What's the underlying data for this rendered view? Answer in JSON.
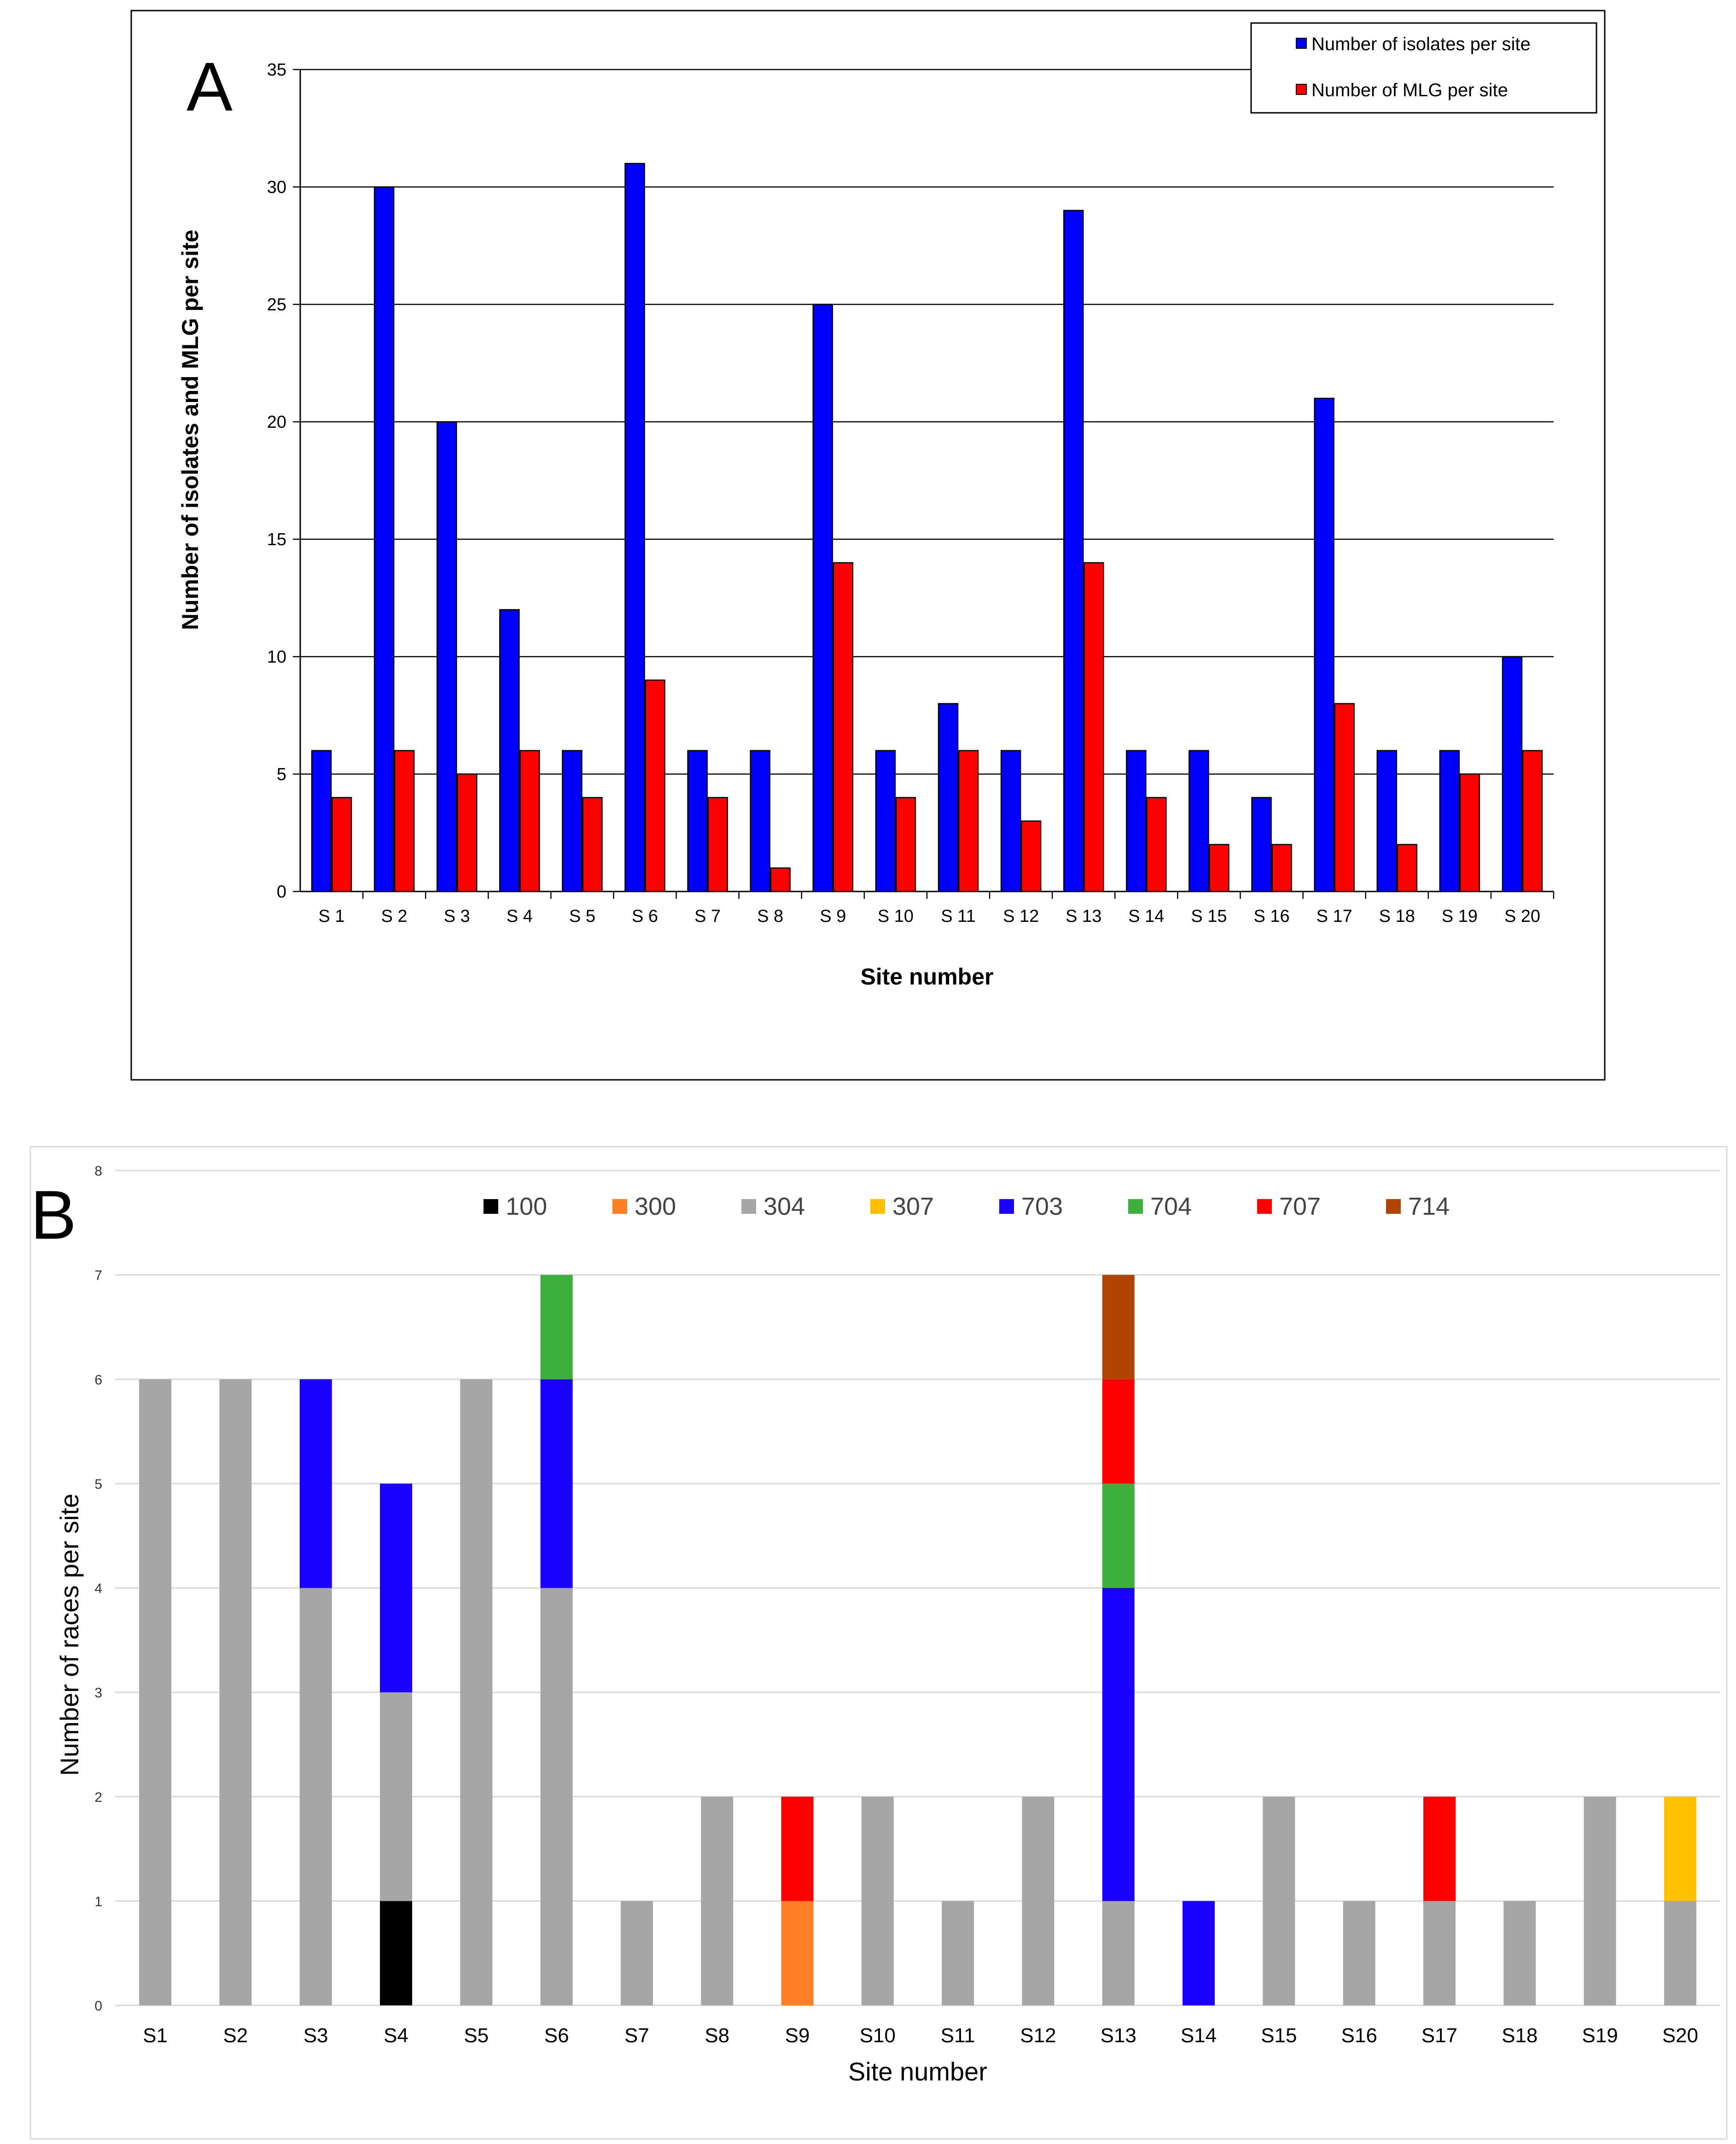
{
  "chart_data": [
    {
      "panel": "A",
      "type": "bar",
      "categories": [
        "S 1",
        "S 2",
        "S 3",
        "S 4",
        "S 5",
        "S 6",
        "S 7",
        "S 8",
        "S 9",
        "S 10",
        "S 11",
        "S 12",
        "S 13",
        "S 14",
        "S 15",
        "S 16",
        "S 17",
        "S 18",
        "S 19",
        "S 20"
      ],
      "series": [
        {
          "name": "Number of isolates per site",
          "color": "#0000ff",
          "values": [
            6,
            30,
            20,
            12,
            6,
            31,
            6,
            6,
            25,
            6,
            8,
            6,
            29,
            6,
            6,
            4,
            21,
            6,
            6,
            10
          ]
        },
        {
          "name": "Number of MLG per site",
          "color": "#ff0000",
          "values": [
            4,
            6,
            5,
            6,
            4,
            9,
            4,
            1,
            14,
            4,
            6,
            3,
            14,
            4,
            2,
            2,
            8,
            2,
            5,
            6
          ]
        }
      ],
      "xlabel": "Site number",
      "ylabel": "Number of isolates and MLG per site",
      "ylim": [
        0,
        35
      ],
      "yticks": [
        0,
        5,
        10,
        15,
        20,
        25,
        30,
        35
      ],
      "legend_position": "top-right",
      "grid": true
    },
    {
      "panel": "B",
      "type": "bar",
      "stacked": true,
      "categories": [
        "S1",
        "S2",
        "S3",
        "S4",
        "S5",
        "S6",
        "S7",
        "S8",
        "S9",
        "S10",
        "S11",
        "S12",
        "S13",
        "S14",
        "S15",
        "S16",
        "S17",
        "S18",
        "S19",
        "S20"
      ],
      "series": [
        {
          "name": "100",
          "color": "#000000",
          "values": [
            0,
            0,
            0,
            1,
            0,
            0,
            0,
            0,
            0,
            0,
            0,
            0,
            0,
            0,
            0,
            0,
            0,
            0,
            0,
            0
          ]
        },
        {
          "name": "300",
          "color": "#ff7f27",
          "values": [
            0,
            0,
            0,
            0,
            0,
            0,
            0,
            0,
            1,
            0,
            0,
            0,
            0,
            0,
            0,
            0,
            0,
            0,
            0,
            0
          ]
        },
        {
          "name": "304",
          "color": "#a6a6a6",
          "values": [
            6,
            6,
            4,
            2,
            6,
            4,
            1,
            2,
            0,
            2,
            1,
            2,
            1,
            0,
            2,
            1,
            1,
            1,
            2,
            1
          ]
        },
        {
          "name": "307",
          "color": "#ffc000",
          "values": [
            0,
            0,
            0,
            0,
            0,
            0,
            0,
            0,
            0,
            0,
            0,
            0,
            0,
            0,
            0,
            0,
            0,
            0,
            0,
            1
          ]
        },
        {
          "name": "703",
          "color": "#1a00ff",
          "values": [
            0,
            0,
            2,
            2,
            0,
            2,
            0,
            0,
            0,
            0,
            0,
            0,
            3,
            1,
            0,
            0,
            0,
            0,
            0,
            0
          ]
        },
        {
          "name": "704",
          "color": "#3caf3c",
          "values": [
            0,
            0,
            0,
            0,
            0,
            1,
            0,
            0,
            0,
            0,
            0,
            0,
            1,
            0,
            0,
            0,
            0,
            0,
            0,
            0
          ]
        },
        {
          "name": "707",
          "color": "#ff0000",
          "values": [
            0,
            0,
            0,
            0,
            0,
            0,
            0,
            0,
            1,
            0,
            0,
            0,
            1,
            0,
            0,
            0,
            1,
            0,
            0,
            0
          ]
        },
        {
          "name": "714",
          "color": "#b04400",
          "values": [
            0,
            0,
            0,
            0,
            0,
            0,
            0,
            0,
            0,
            0,
            0,
            0,
            1,
            0,
            0,
            0,
            0,
            0,
            0,
            0
          ]
        }
      ],
      "xlabel": "Site number",
      "ylabel": "Number of races per site",
      "ylim": [
        0,
        8
      ],
      "yticks": [
        0,
        1,
        2,
        3,
        4,
        5,
        6,
        7,
        8
      ],
      "legend_position": "top",
      "grid": true
    }
  ],
  "panels": {
    "a_letter": "A",
    "b_letter": "B"
  }
}
